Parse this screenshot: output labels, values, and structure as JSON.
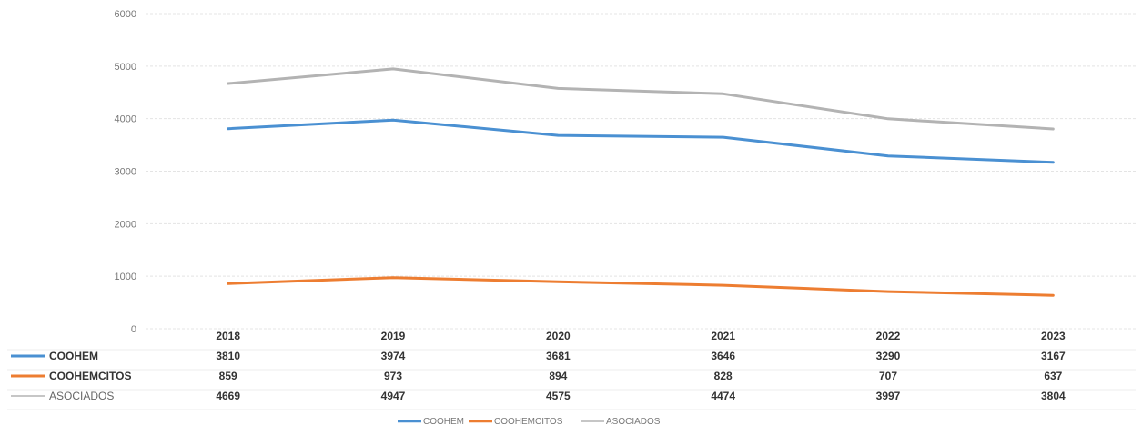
{
  "chart_data": {
    "type": "line",
    "categories": [
      "2018",
      "2019",
      "2020",
      "2021",
      "2022",
      "2023"
    ],
    "series": [
      {
        "name": "COOHEM",
        "values": [
          3810,
          3974,
          3681,
          3646,
          3290,
          3167
        ],
        "color": "#4a90d2"
      },
      {
        "name": "COOHEMCITOS",
        "values": [
          859,
          973,
          894,
          828,
          707,
          637
        ],
        "color": "#ed7d31"
      },
      {
        "name": "ASOCIADOS",
        "values": [
          4669,
          4947,
          4575,
          4474,
          3997,
          3804
        ],
        "color": "#b3b3b3"
      }
    ],
    "ylim": [
      0,
      6000
    ],
    "yticks": [
      "0",
      "1000",
      "2000",
      "3000",
      "4000",
      "5000",
      "6000"
    ],
    "grid": true,
    "data_table": true,
    "legend_position": "bottom",
    "title": "",
    "xlabel": "",
    "ylabel": ""
  }
}
